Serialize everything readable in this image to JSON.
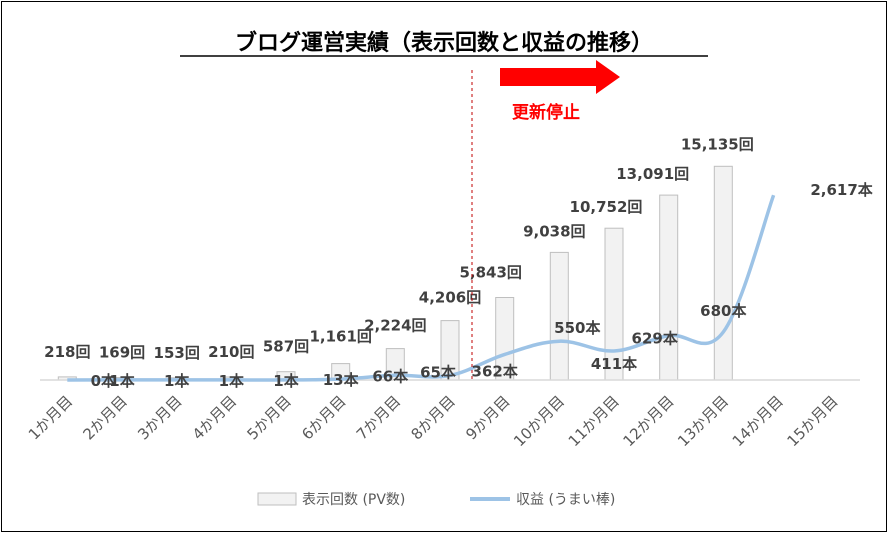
{
  "chart_data": {
    "type": "bar",
    "title": "ブログ運営実績（表示回数と収益の推移）",
    "categories": [
      "1か月目",
      "2か月目",
      "3か月目",
      "4か月目",
      "5か月目",
      "6か月目",
      "7か月目",
      "8か月目",
      "9か月目",
      "10か月目",
      "11か月目",
      "12か月目",
      "13か月目",
      "14か月目",
      "15か月目"
    ],
    "series": [
      {
        "name": "表示回数 (PV数)",
        "kind": "bar",
        "values": [
          218,
          169,
          153,
          210,
          587,
          1161,
          2224,
          4206,
          5843,
          9038,
          10752,
          13091,
          15135,
          null,
          null
        ],
        "labels": [
          "218回",
          "169回",
          "153回",
          "210回",
          "587回",
          "1,161回",
          "2,224回",
          "4,206回",
          "5,843回",
          "9,038回",
          "10,752回",
          "13,091回",
          "15,135回",
          "",
          ""
        ],
        "color": "#f2f2f2"
      },
      {
        "name": "収益 (うまい棒)",
        "kind": "line",
        "values": [
          0,
          1,
          1,
          1,
          1,
          13,
          66,
          65,
          362,
          550,
          411,
          629,
          680,
          2617,
          null
        ],
        "plot_index": [
          0,
          1,
          2,
          3,
          4,
          5,
          6,
          7,
          8,
          9,
          10,
          11,
          12,
          12.92,
          null
        ],
        "labels": [
          "0本",
          "1本",
          "1本",
          "1本",
          "1本",
          "13本",
          "66本",
          "65本",
          "362本",
          "550本",
          "411本",
          "629本",
          "680本",
          "2,617本",
          ""
        ],
        "color": "#9dc3e6"
      }
    ],
    "ylim_bars": [
      0,
      16500
    ],
    "ylim_line": [
      0,
      3300
    ],
    "grid": false,
    "legend": "bottom",
    "annotation": {
      "text": "更新停止",
      "after_category": "8か月目",
      "color": "#ff0000"
    }
  }
}
